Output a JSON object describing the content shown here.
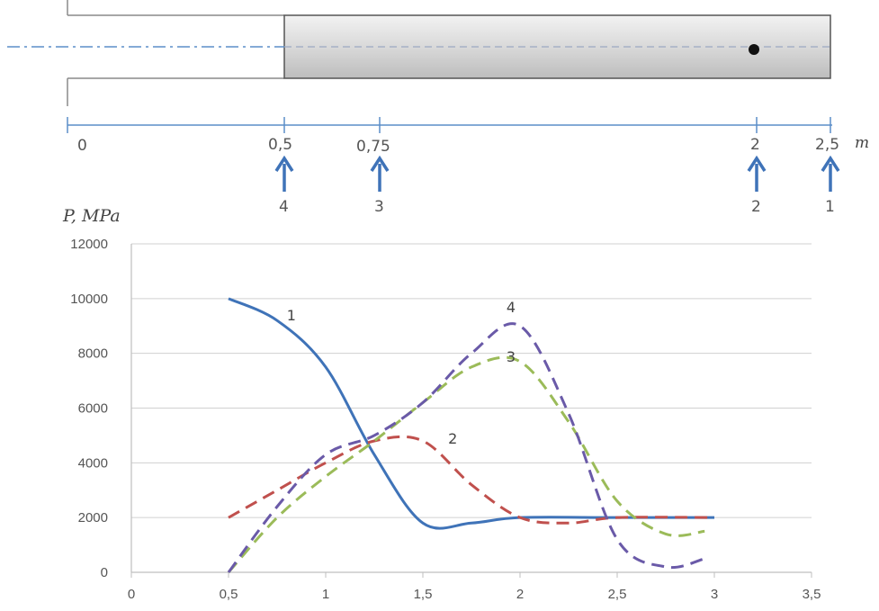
{
  "schematic": {
    "scale_marks": [
      "0",
      "0,5",
      "0,75",
      "2",
      "2,5"
    ],
    "scale_unit": "m",
    "points": [
      {
        "position": 0.5,
        "number": "4"
      },
      {
        "position": 0.75,
        "number": "3"
      },
      {
        "position": 2,
        "number": "2"
      },
      {
        "position": 2.5,
        "number": "1"
      }
    ],
    "rod_start": 0.5,
    "rod_end": 2.5,
    "marker_position": 2
  },
  "chart_data": {
    "type": "line",
    "ylabel": "P, MPa",
    "xlabel": "",
    "xlim": [
      0,
      3.5
    ],
    "ylim": [
      0,
      12000
    ],
    "x_ticks": [
      "0",
      "0,5",
      "1",
      "1,5",
      "2",
      "2,5",
      "3",
      "3,5"
    ],
    "y_ticks": [
      "0",
      "2000",
      "4000",
      "6000",
      "8000",
      "10000",
      "12000"
    ],
    "grid": "horizontal",
    "series": [
      {
        "name": "1",
        "color": "#3f73b8",
        "style": "solid",
        "x": [
          0.5,
          0.75,
          1.0,
          1.25,
          1.5,
          1.75,
          2.0,
          2.5,
          3.0
        ],
        "y": [
          10000,
          9200,
          7500,
          4300,
          1800,
          1800,
          2000,
          2000,
          2000
        ]
      },
      {
        "name": "2",
        "color": "#c0504d",
        "style": "dashed",
        "x": [
          0.5,
          0.75,
          1.0,
          1.25,
          1.5,
          1.75,
          2.0,
          2.25,
          2.5,
          3.0
        ],
        "y": [
          2000,
          3000,
          4000,
          4800,
          4800,
          3200,
          2000,
          1800,
          2000,
          2000
        ]
      },
      {
        "name": "3",
        "color": "#9bbb59",
        "style": "dashed",
        "x": [
          0.5,
          0.75,
          1.0,
          1.25,
          1.5,
          1.75,
          2.0,
          2.25,
          2.5,
          2.75,
          2.95
        ],
        "y": [
          0,
          2000,
          3500,
          4800,
          6200,
          7500,
          7700,
          5500,
          2600,
          1400,
          1500
        ]
      },
      {
        "name": "4",
        "color": "#6a5aa8",
        "style": "dashed",
        "x": [
          0.5,
          0.75,
          1.0,
          1.25,
          1.5,
          1.75,
          2.0,
          2.25,
          2.5,
          2.75,
          2.95
        ],
        "y": [
          0,
          2400,
          4300,
          5000,
          6200,
          8000,
          9000,
          5800,
          1200,
          200,
          500
        ]
      }
    ],
    "series_label_positions": [
      {
        "name": "1",
        "x": 0.8,
        "y": 9200
      },
      {
        "name": "2",
        "x": 1.63,
        "y": 4700
      },
      {
        "name": "3",
        "x": 1.93,
        "y": 7700
      },
      {
        "name": "4",
        "x": 1.93,
        "y": 9500
      }
    ]
  }
}
